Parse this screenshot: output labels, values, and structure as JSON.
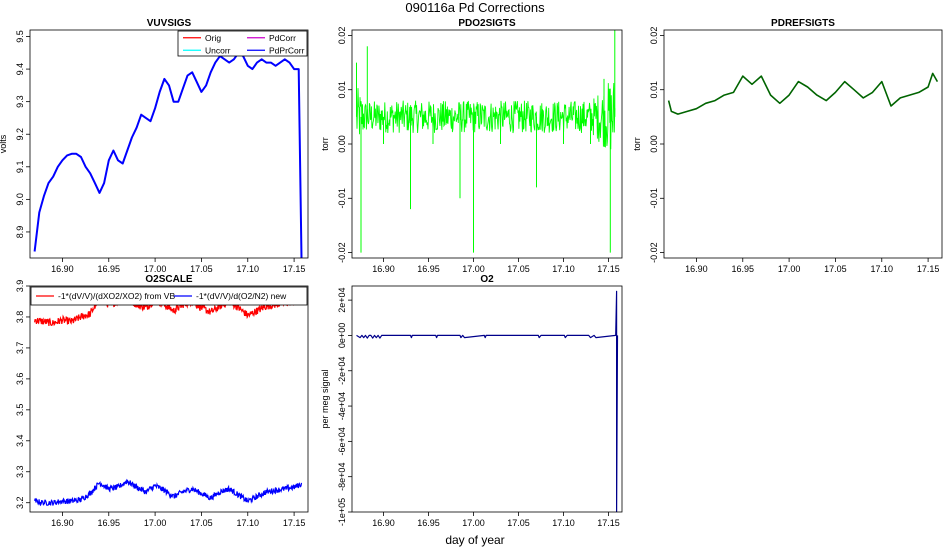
{
  "figure": {
    "title": "090116a   Pd Corrections",
    "xlabel": "day of year"
  },
  "chart_data": [
    {
      "id": "vuvsigs",
      "type": "line",
      "title": "VUVSIGS",
      "ylabel": "volts",
      "xlim": [
        16.865,
        17.165
      ],
      "ylim": [
        8.82,
        9.52
      ],
      "xticks": [
        "16.90",
        "16.95",
        "17.00",
        "17.05",
        "17.10",
        "17.15"
      ],
      "yticks": [
        "8.9",
        "9.0",
        "9.1",
        "9.2",
        "9.3",
        "9.4",
        "9.5"
      ],
      "legend": {
        "position": "top-right",
        "columns": 2,
        "entries": [
          "Orig",
          "Uncorr",
          "PdCorr",
          "PdPrCorr"
        ]
      },
      "series": [
        {
          "name": "Orig",
          "color": "#ff0000"
        },
        {
          "name": "Uncorr",
          "color": "#00ffff"
        },
        {
          "name": "PdCorr",
          "color": "#cc00cc"
        },
        {
          "name": "PdPrCorr",
          "color": "#0000ff",
          "x": [
            16.87,
            16.875,
            16.88,
            16.885,
            16.89,
            16.895,
            16.9,
            16.905,
            16.91,
            16.915,
            16.92,
            16.925,
            16.93,
            16.935,
            16.94,
            16.945,
            16.95,
            16.955,
            16.96,
            16.965,
            16.97,
            16.975,
            16.98,
            16.985,
            16.99,
            16.995,
            17.0,
            17.005,
            17.01,
            17.015,
            17.02,
            17.025,
            17.03,
            17.035,
            17.04,
            17.045,
            17.05,
            17.055,
            17.06,
            17.065,
            17.07,
            17.075,
            17.08,
            17.085,
            17.09,
            17.095,
            17.1,
            17.105,
            17.11,
            17.115,
            17.12,
            17.125,
            17.13,
            17.135,
            17.14,
            17.145,
            17.15,
            17.155,
            17.158
          ],
          "y": [
            8.84,
            8.96,
            9.01,
            9.05,
            9.07,
            9.1,
            9.12,
            9.135,
            9.14,
            9.14,
            9.13,
            9.1,
            9.08,
            9.05,
            9.02,
            9.05,
            9.12,
            9.15,
            9.12,
            9.11,
            9.15,
            9.19,
            9.22,
            9.26,
            9.25,
            9.24,
            9.28,
            9.33,
            9.37,
            9.35,
            9.3,
            9.3,
            9.34,
            9.38,
            9.39,
            9.36,
            9.33,
            9.35,
            9.39,
            9.42,
            9.44,
            9.43,
            9.42,
            9.43,
            9.45,
            9.44,
            9.41,
            9.4,
            9.42,
            9.43,
            9.42,
            9.42,
            9.41,
            9.42,
            9.43,
            9.42,
            9.4,
            9.4,
            8.82
          ]
        }
      ]
    },
    {
      "id": "pdo2sigts",
      "type": "line",
      "title": "PDO2SIGTS",
      "ylabel": "torr",
      "xlim": [
        16.865,
        17.165
      ],
      "ylim": [
        -0.021,
        0.021
      ],
      "xticks": [
        "16.90",
        "16.95",
        "17.00",
        "17.05",
        "17.10",
        "17.15"
      ],
      "yticks": [
        "-0.02",
        "-0.01",
        "0.00",
        "0.01",
        "0.02"
      ],
      "series": [
        {
          "color": "#00ff00",
          "center": 0.005,
          "band": 0.003,
          "x": [
            16.87,
            16.875,
            16.882,
            16.9,
            16.93,
            16.955,
            16.985,
            17.0,
            17.03,
            17.07,
            17.1,
            17.13,
            17.145,
            17.152,
            17.157
          ],
          "y": [
            0.015,
            -0.02,
            0.018,
            0.0,
            -0.012,
            0.0,
            -0.01,
            -0.02,
            0.0,
            -0.008,
            0.0,
            0.0,
            0.012,
            -0.02,
            0.021
          ]
        }
      ]
    },
    {
      "id": "pdrefsigts",
      "type": "line",
      "title": "PDREFSIGTS",
      "ylabel": "torr",
      "xlim": [
        16.865,
        17.165
      ],
      "ylim": [
        -0.021,
        0.021
      ],
      "xticks": [
        "16.90",
        "16.95",
        "17.00",
        "17.05",
        "17.10",
        "17.15"
      ],
      "yticks": [
        "-0.02",
        "-0.01",
        "0.00",
        "0.01",
        "0.02"
      ],
      "series": [
        {
          "color": "#006400",
          "x": [
            16.87,
            16.873,
            16.88,
            16.89,
            16.9,
            16.91,
            16.92,
            16.93,
            16.94,
            16.95,
            16.96,
            16.97,
            16.98,
            16.99,
            17.0,
            17.01,
            17.02,
            17.03,
            17.04,
            17.05,
            17.06,
            17.07,
            17.08,
            17.09,
            17.1,
            17.11,
            17.12,
            17.13,
            17.14,
            17.15,
            17.155,
            17.16
          ],
          "y": [
            0.008,
            0.006,
            0.0055,
            0.006,
            0.0065,
            0.0075,
            0.008,
            0.009,
            0.0095,
            0.0125,
            0.011,
            0.0125,
            0.009,
            0.0075,
            0.009,
            0.0115,
            0.0105,
            0.009,
            0.008,
            0.0095,
            0.0115,
            0.01,
            0.0085,
            0.0095,
            0.0115,
            0.007,
            0.0085,
            0.009,
            0.0095,
            0.0105,
            0.013,
            0.0115
          ]
        }
      ]
    },
    {
      "id": "o2scale",
      "type": "line",
      "title": "O2SCALE",
      "ylabel": "",
      "xlim": [
        16.865,
        17.165
      ],
      "ylim": [
        3.17,
        3.9
      ],
      "xticks": [
        "16.90",
        "16.95",
        "17.00",
        "17.05",
        "17.10",
        "17.15"
      ],
      "yticks": [
        "3.2",
        "3.3",
        "3.4",
        "3.5",
        "3.6",
        "3.7",
        "3.8",
        "3.9"
      ],
      "legend": {
        "position": "top",
        "columns": 2,
        "entries": [
          "-1*(dV/V)/(dXO2/XO2) from VB",
          "-1*(dV/V)/d(O2/N2) new"
        ]
      },
      "series": [
        {
          "name": "-1*(dV/V)/(dXO2/XO2) from VB",
          "color": "#ff0000",
          "band": 0.012,
          "x": [
            16.87,
            16.88,
            16.89,
            16.9,
            16.91,
            16.92,
            16.93,
            16.94,
            16.95,
            16.96,
            16.97,
            16.98,
            16.99,
            17.0,
            17.01,
            17.02,
            17.03,
            17.04,
            17.05,
            17.06,
            17.07,
            17.08,
            17.09,
            17.1,
            17.11,
            17.12,
            17.13,
            17.14,
            17.15,
            17.158
          ],
          "y": [
            3.79,
            3.785,
            3.78,
            3.79,
            3.785,
            3.8,
            3.81,
            3.86,
            3.84,
            3.85,
            3.86,
            3.84,
            3.83,
            3.855,
            3.84,
            3.82,
            3.84,
            3.85,
            3.83,
            3.815,
            3.835,
            3.85,
            3.83,
            3.805,
            3.82,
            3.835,
            3.84,
            3.845,
            3.85,
            3.855
          ]
        },
        {
          "name": "-1*(dV/V)/d(O2/N2) new",
          "color": "#0000ff",
          "band": 0.009,
          "x": [
            16.87,
            16.88,
            16.89,
            16.9,
            16.91,
            16.92,
            16.93,
            16.94,
            16.95,
            16.96,
            16.97,
            16.98,
            16.99,
            17.0,
            17.01,
            17.02,
            17.03,
            17.04,
            17.05,
            17.06,
            17.07,
            17.08,
            17.09,
            17.1,
            17.11,
            17.12,
            17.13,
            17.14,
            17.15,
            17.158
          ],
          "y": [
            3.205,
            3.2,
            3.2,
            3.205,
            3.205,
            3.21,
            3.23,
            3.265,
            3.245,
            3.25,
            3.27,
            3.25,
            3.235,
            3.255,
            3.24,
            3.22,
            3.235,
            3.245,
            3.23,
            3.215,
            3.235,
            3.245,
            3.225,
            3.205,
            3.22,
            3.235,
            3.24,
            3.245,
            3.25,
            3.26
          ]
        }
      ]
    },
    {
      "id": "o2",
      "type": "line",
      "title": "O2",
      "ylabel": "per meg signal",
      "xlim": [
        16.865,
        17.165
      ],
      "ylim": [
        -100000,
        28000
      ],
      "xticks": [
        "16.90",
        "16.95",
        "17.00",
        "17.05",
        "17.10",
        "17.15"
      ],
      "yticks": [
        "2e+04",
        "0e+00",
        "-2e+04",
        "-4e+04",
        "-6e+04",
        "-8e+04",
        "-1e+05"
      ],
      "series": [
        {
          "color": "#00008b",
          "x": [
            16.87,
            16.874,
            16.876,
            16.878,
            16.88,
            16.882,
            16.884,
            16.886,
            16.888,
            16.89,
            16.892,
            16.894,
            16.896,
            16.898,
            16.93,
            16.931,
            16.932,
            16.958,
            16.959,
            16.96,
            16.985,
            16.986,
            16.988,
            16.99,
            17.012,
            17.013,
            17.014,
            17.072,
            17.073,
            17.075,
            17.101,
            17.102,
            17.104,
            17.128,
            17.13,
            17.134,
            17.136,
            17.158,
            17.159,
            17.159,
            17.16
          ],
          "y": [
            0,
            -1200,
            0,
            -1200,
            0,
            -1500,
            0,
            0,
            -1500,
            0,
            -1200,
            0,
            -1500,
            0,
            0,
            -1200,
            0,
            0,
            -1200,
            0,
            0,
            -1200,
            0,
            -1200,
            0,
            -1200,
            0,
            0,
            -1200,
            0,
            0,
            -1200,
            0,
            0,
            -1200,
            0,
            -1200,
            0,
            25000,
            -100000,
            0
          ]
        }
      ]
    }
  ]
}
